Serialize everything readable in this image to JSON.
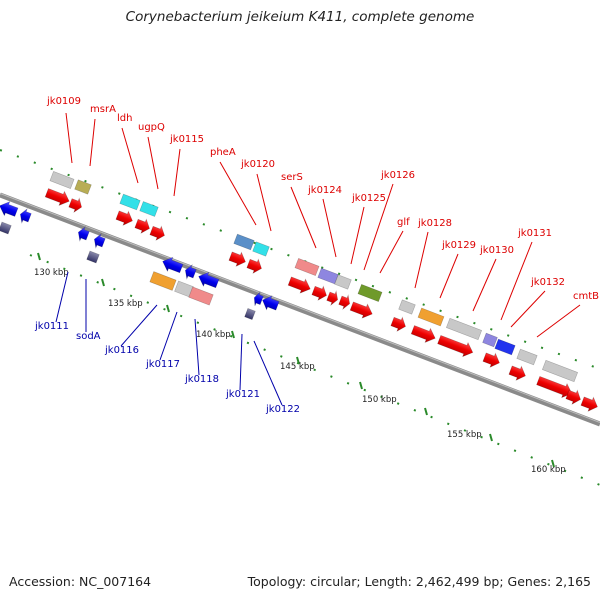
{
  "title": "Corynebacterium jeikeium K411, complete genome",
  "footer": {
    "accession": "Accession: NC_007164",
    "topology": "Topology: circular; Length: 2,462,499 bp; Genes: 2,165"
  },
  "colors": {
    "forward_label": "#dd0000",
    "reverse_label": "#0000aa",
    "backbone": "#888888",
    "tick": "#2a8a2a"
  },
  "scale_ticks": [
    "130 kbp",
    "135 kbp",
    "140 kbp",
    "145 kbp",
    "150 kbp",
    "155 kbp",
    "160 kbp"
  ],
  "forward_gene_labels": [
    "jk0109",
    "msrA",
    "ldh",
    "ugpQ",
    "jk0115",
    "pheA",
    "jk0120",
    "serS",
    "jk0124",
    "jk0125",
    "jk0126",
    "glf",
    "jk0128",
    "jk0129",
    "jk0130",
    "jk0131",
    "jk0132",
    "cmtB"
  ],
  "reverse_gene_labels": [
    "jk0111",
    "sodA",
    "jk0116",
    "jk0117",
    "jk0118",
    "jk0121",
    "jk0122"
  ]
}
